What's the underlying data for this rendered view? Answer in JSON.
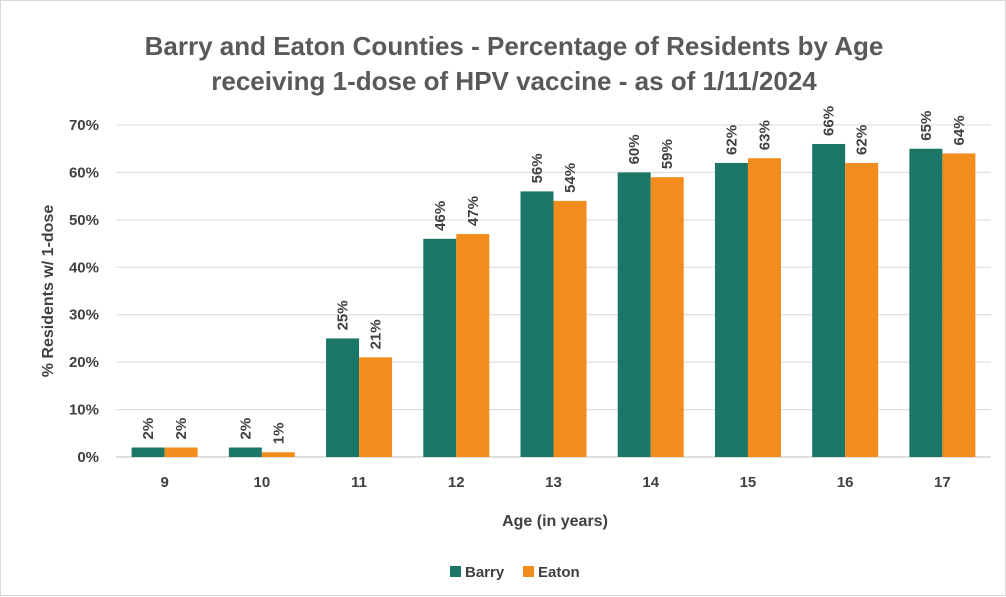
{
  "chart_data": {
    "type": "bar",
    "title": "Barry and Eaton Counties - Percentage of Residents by Age",
    "subtitle": "receiving 1-dose of HPV vaccine - as of 1/11/2024",
    "xlabel": "Age (in years)",
    "ylabel": "% Residents w/ 1-dose",
    "categories": [
      "9",
      "10",
      "11",
      "12",
      "13",
      "14",
      "15",
      "16",
      "17"
    ],
    "series": [
      {
        "name": "Barry",
        "values": [
          2,
          2,
          25,
          46,
          56,
          60,
          62,
          66,
          65
        ],
        "color": "#1b7668"
      },
      {
        "name": "Eaton",
        "values": [
          2,
          1,
          21,
          47,
          54,
          59,
          63,
          62,
          64
        ],
        "color": "#f28c1c"
      }
    ],
    "ylim": [
      0,
      70
    ],
    "yticks": [
      "0%",
      "10%",
      "20%",
      "30%",
      "40%",
      "50%",
      "60%",
      "70%"
    ],
    "value_suffix": "%",
    "grid": true,
    "legend_position": "bottom"
  }
}
